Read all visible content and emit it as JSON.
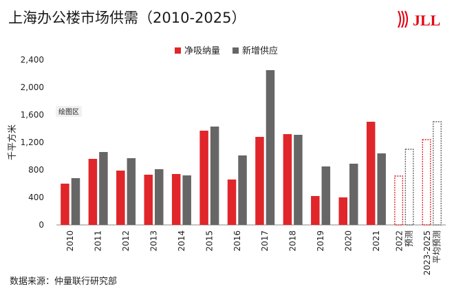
{
  "title": "上海办公楼市场供需（2010-2025）",
  "source": "数据来源：仲量联行研究部",
  "logo": {
    "text": "JLL",
    "color": "#e30613"
  },
  "colors": {
    "absorption": "#e0262a",
    "supply": "#666666"
  },
  "chart_data": {
    "type": "bar",
    "title": "",
    "ylabel": "千平方米",
    "xlabel": "",
    "ylim": [
      0,
      2400
    ],
    "yticks": [
      0,
      400,
      800,
      1200,
      1600,
      2000,
      2400
    ],
    "ytick_labels": [
      "0",
      "400",
      "800",
      "1,200",
      "1,600",
      "2,000",
      "2,400"
    ],
    "grid": false,
    "legend_position": "top-center",
    "plot_label": "绘图区",
    "categories": [
      "2010",
      "2011",
      "2012",
      "2013",
      "2014",
      "2015",
      "2016",
      "2017",
      "2018",
      "2019",
      "2020",
      "2021",
      "2022\n预测",
      "2023-2025\n平均预测"
    ],
    "forecast_from_index": 12,
    "series": [
      {
        "name": "净吸纳量",
        "values": [
          600,
          960,
          790,
          730,
          740,
          1370,
          660,
          1280,
          1320,
          420,
          400,
          1500,
          710,
          1240
        ]
      },
      {
        "name": "新增供应",
        "values": [
          680,
          1060,
          970,
          810,
          720,
          1430,
          1010,
          2250,
          1310,
          850,
          890,
          1040,
          1100,
          1500
        ]
      }
    ]
  }
}
